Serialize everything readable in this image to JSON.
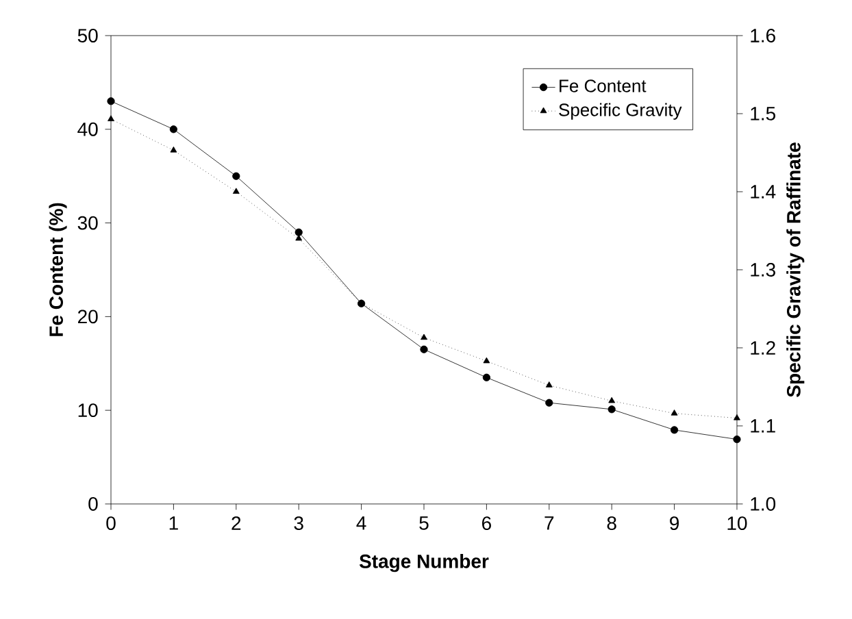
{
  "chart_data": {
    "type": "line",
    "xlabel": "Stage Number",
    "ylabel": "Fe Content (%)",
    "y2label": "Specific Gravity of Raffinate",
    "x": [
      0,
      1,
      2,
      3,
      4,
      5,
      6,
      7,
      8,
      9,
      10
    ],
    "series": [
      {
        "name": "Fe Content",
        "color": "#000000",
        "marker": "circle",
        "line_style": "solid",
        "values": [
          43.0,
          40.0,
          35.0,
          29.0,
          21.4,
          16.5,
          13.5,
          10.8,
          10.1,
          7.9,
          6.9
        ]
      },
      {
        "name": "Specific Gravity",
        "color": "#000000",
        "marker": "triangle",
        "line_style": "dotted",
        "axis": "y2",
        "values": [
          1.493,
          1.453,
          1.4,
          1.34,
          1.257,
          1.213,
          1.183,
          1.152,
          1.132,
          1.116,
          1.11
        ]
      }
    ],
    "xlim": [
      0,
      10
    ],
    "xticks": [
      0,
      1,
      2,
      3,
      4,
      5,
      6,
      7,
      8,
      9,
      10
    ],
    "ylim": [
      0,
      50
    ],
    "yticks": [
      0,
      10,
      20,
      30,
      40,
      50
    ],
    "y2lim": [
      1.0,
      1.6
    ],
    "y2ticks": [
      {
        "value": 1.0,
        "label": "1.0"
      },
      {
        "value": 1.1,
        "label": "1.1"
      },
      {
        "value": 1.2,
        "label": "1.2"
      },
      {
        "value": 1.3,
        "label": "1.3"
      },
      {
        "value": 1.4,
        "label": "1.4"
      },
      {
        "value": 1.5,
        "label": "1.5"
      },
      {
        "value": 1.6,
        "label": "1.6"
      }
    ],
    "grid": false,
    "legend": "top right"
  }
}
